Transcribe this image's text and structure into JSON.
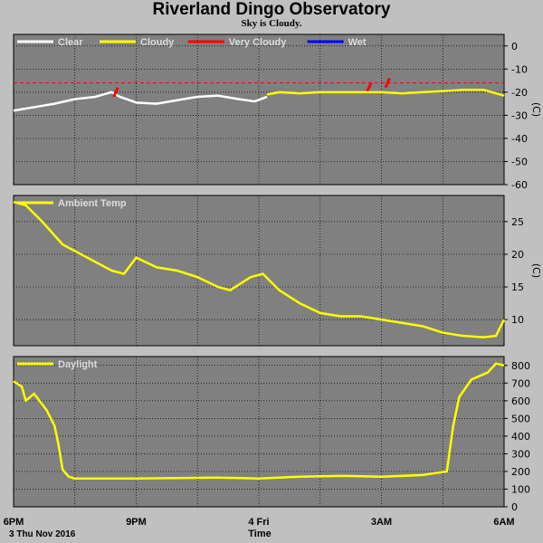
{
  "title": "Riverland Dingo Observatory",
  "subtitle": "Sky is Cloudy.",
  "xlabel": "Time",
  "x_tick_labels": [
    "6PM",
    "9PM",
    "4 Fri",
    "3AM",
    "6AM"
  ],
  "date_label": "3 Thu Nov 2016",
  "colors": {
    "background": "#c0c0c0",
    "panel": "#808080",
    "grid": "#000000"
  },
  "chart_data": [
    {
      "type": "line",
      "name": "sky",
      "ylabel": "(C)",
      "ylim": [
        -60,
        5
      ],
      "yticks": [
        0,
        -10,
        -20,
        -30,
        -40,
        -50,
        -60
      ],
      "x_range_hours": [
        0,
        12
      ],
      "threshold": {
        "value": -16,
        "color": "#ff0000",
        "style": "dashed"
      },
      "legend": [
        {
          "label": "Clear",
          "color": "#ffffff"
        },
        {
          "label": "Cloudy",
          "color": "#ffff00"
        },
        {
          "label": "Very Cloudy",
          "color": "#ff0000"
        },
        {
          "label": "Wet",
          "color": "#0000ff"
        }
      ],
      "series": [
        {
          "name": "Clear",
          "color": "#ffffff",
          "x": [
            0,
            0.5,
            1,
            1.5,
            2,
            2.4,
            2.6,
            3,
            3.5,
            4,
            4.5,
            5,
            5.5,
            5.9,
            6.2
          ],
          "y": [
            -28,
            -26.5,
            -25,
            -23,
            -22,
            -20,
            -22,
            -24.5,
            -25,
            -23.5,
            -22,
            -21.5,
            -23,
            -24,
            -22
          ]
        },
        {
          "name": "Cloudy",
          "color": "#ffff00",
          "x": [
            6.2,
            6.5,
            7,
            7.5,
            8,
            8.5,
            9,
            9.5,
            10,
            10.5,
            11,
            11.5,
            12
          ],
          "y": [
            -21,
            -20,
            -20.5,
            -20,
            -20,
            -20,
            -20,
            -20.5,
            -20,
            -19.5,
            -19,
            -19,
            -21.5
          ]
        },
        {
          "name": "Very Cloudy",
          "color": "#ff0000",
          "x": [
            2.45,
            2.55,
            8.65,
            8.75,
            9.1,
            9.2
          ],
          "y": [
            -22,
            -18,
            -19.5,
            -16,
            -18,
            -14
          ]
        }
      ]
    },
    {
      "type": "line",
      "name": "ambient",
      "ylabel": "(C)",
      "ylim": [
        6,
        29
      ],
      "yticks": [
        10,
        15,
        20,
        25
      ],
      "x_range_hours": [
        0,
        12
      ],
      "legend": [
        {
          "label": "Ambient Temp",
          "color": "#ffff00"
        }
      ],
      "series": [
        {
          "name": "Ambient Temp",
          "color": "#ffff00",
          "x": [
            0,
            0.3,
            0.7,
            1.2,
            1.8,
            2.4,
            2.7,
            3,
            3.5,
            4,
            4.5,
            5,
            5.3,
            5.8,
            6.1,
            6.5,
            7,
            7.5,
            8,
            8.5,
            9,
            9.5,
            10,
            10.5,
            11,
            11.5,
            11.8,
            12
          ],
          "y": [
            28,
            27.5,
            25,
            21.5,
            19.5,
            17.5,
            17,
            19.5,
            18,
            17.5,
            16.5,
            15,
            14.5,
            16.5,
            17,
            14.5,
            12.5,
            11,
            10.5,
            10.5,
            10,
            9.5,
            9,
            8,
            7.5,
            7.3,
            7.5,
            10
          ]
        }
      ]
    },
    {
      "type": "line",
      "name": "daylight",
      "ylabel": "",
      "ylim": [
        0,
        850
      ],
      "yticks": [
        0,
        100,
        200,
        300,
        400,
        500,
        600,
        700,
        800
      ],
      "x_range_hours": [
        0,
        12
      ],
      "legend": [
        {
          "label": "Daylight",
          "color": "#ffff00"
        }
      ],
      "series": [
        {
          "name": "Daylight",
          "color": "#ffff00",
          "x": [
            0,
            0.2,
            0.3,
            0.5,
            0.8,
            1,
            1.1,
            1.2,
            1.35,
            1.5,
            3,
            5,
            6,
            7,
            8,
            9,
            9.5,
            10,
            10.6,
            10.75,
            10.9,
            11.2,
            11.6,
            11.8,
            12
          ],
          "y": [
            710,
            680,
            600,
            640,
            550,
            460,
            350,
            210,
            170,
            160,
            160,
            165,
            160,
            170,
            175,
            170,
            175,
            180,
            200,
            450,
            620,
            720,
            760,
            810,
            800
          ]
        }
      ]
    }
  ]
}
